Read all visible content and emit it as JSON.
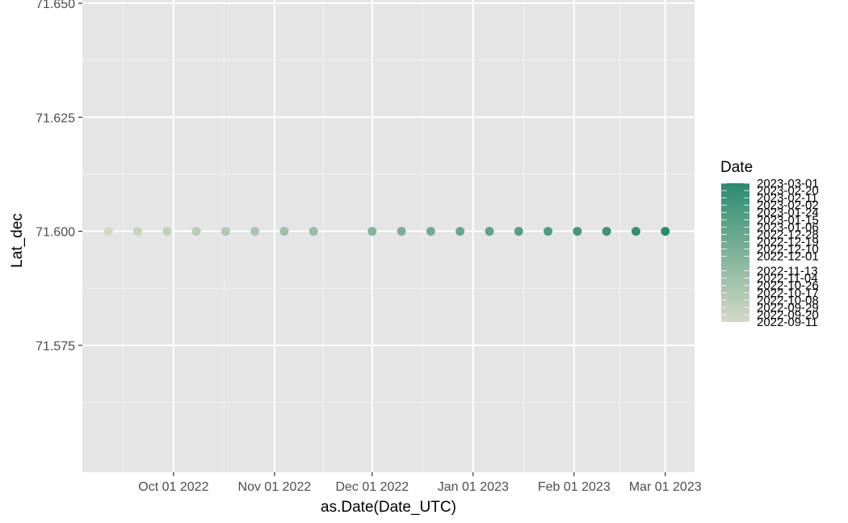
{
  "chart_data": {
    "type": "scatter",
    "xlabel": "as.Date(Date_UTC)",
    "ylabel": "Lat_dec",
    "x_tick_labels": [
      "Oct 01 2022",
      "Nov 01 2022",
      "Dec 01 2022",
      "Jan 01 2023",
      "Feb 01 2023",
      "Mar 01 2023"
    ],
    "x_ticks": [
      "2022-10-01",
      "2022-11-01",
      "2022-12-01",
      "2023-01-01",
      "2023-02-01",
      "2023-03-01"
    ],
    "y_tick_labels": [
      "71.575",
      "71.600",
      "71.625",
      "71.650"
    ],
    "y_ticks": [
      71.575,
      71.6,
      71.625,
      71.65
    ],
    "xlim": [
      "2022-09-03",
      "2023-03-10"
    ],
    "ylim": [
      71.5472,
      71.6507
    ],
    "grid": true,
    "legend": {
      "title": "Date",
      "position": "right",
      "color_low": "#d3d8c5",
      "color_high": "#2a8b6e",
      "labels": [
        "2022-09-11",
        "2022-09-20",
        "2022-09-29",
        "2022-10-08",
        "2022-10-17",
        "2022-10-26",
        "2022-11-04",
        "2022-11-13",
        "2022-12-01",
        "2022-12-10",
        "2022-12-19",
        "2022-12-28",
        "2023-01-06",
        "2023-01-15",
        "2023-01-24",
        "2023-02-02",
        "2023-02-11",
        "2023-02-20",
        "2023-03-01"
      ]
    },
    "points": [
      {
        "x": "2022-09-11",
        "y": 71.6
      },
      {
        "x": "2022-09-20",
        "y": 71.6
      },
      {
        "x": "2022-09-29",
        "y": 71.6
      },
      {
        "x": "2022-10-08",
        "y": 71.6
      },
      {
        "x": "2022-10-17",
        "y": 71.6
      },
      {
        "x": "2022-10-26",
        "y": 71.6
      },
      {
        "x": "2022-11-04",
        "y": 71.6
      },
      {
        "x": "2022-11-13",
        "y": 71.6
      },
      {
        "x": "2022-12-01",
        "y": 71.6
      },
      {
        "x": "2022-12-10",
        "y": 71.6
      },
      {
        "x": "2022-12-19",
        "y": 71.6
      },
      {
        "x": "2022-12-28",
        "y": 71.6
      },
      {
        "x": "2023-01-06",
        "y": 71.6
      },
      {
        "x": "2023-01-15",
        "y": 71.6
      },
      {
        "x": "2023-01-24",
        "y": 71.6
      },
      {
        "x": "2023-02-02",
        "y": 71.6
      },
      {
        "x": "2023-02-11",
        "y": 71.6
      },
      {
        "x": "2023-02-20",
        "y": 71.6
      },
      {
        "x": "2023-03-01",
        "y": 71.6
      }
    ]
  }
}
